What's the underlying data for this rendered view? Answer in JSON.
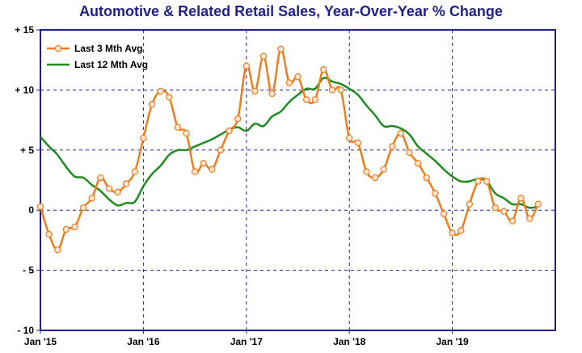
{
  "chart_data": {
    "type": "line",
    "title": "Automotive & Related Retail Sales, Year-Over-Year % Change",
    "xlabel": "",
    "ylabel": "",
    "ylim": [
      -10,
      15
    ],
    "y_ticks": [
      "+ 15",
      "+ 10",
      "+ 5",
      "0",
      "- 5",
      "- 10"
    ],
    "x_ticks": [
      "Jan '15",
      "Jan '16",
      "Jan '17",
      "Jan '18",
      "Jan '19"
    ],
    "x_start": "2015-01",
    "grid": true,
    "legend_position": "top-left",
    "series": [
      {
        "name": "Last 3 Mth Avg",
        "color": "#f07d1a",
        "marker": "circle",
        "x": [
          "2015-01",
          "2015-02",
          "2015-03",
          "2015-04",
          "2015-05",
          "2015-06",
          "2015-07",
          "2015-08",
          "2015-09",
          "2015-10",
          "2015-11",
          "2015-12",
          "2016-01",
          "2016-02",
          "2016-03",
          "2016-04",
          "2016-05",
          "2016-06",
          "2016-07",
          "2016-08",
          "2016-09",
          "2016-10",
          "2016-11",
          "2016-12",
          "2017-01",
          "2017-02",
          "2017-03",
          "2017-04",
          "2017-05",
          "2017-06",
          "2017-07",
          "2017-08",
          "2017-09",
          "2017-10",
          "2017-11",
          "2017-12",
          "2018-01",
          "2018-02",
          "2018-03",
          "2018-04",
          "2018-05",
          "2018-06",
          "2018-07",
          "2018-08",
          "2018-09",
          "2018-10",
          "2018-11",
          "2018-12",
          "2019-01",
          "2019-02",
          "2019-03",
          "2019-04",
          "2019-05",
          "2019-06",
          "2019-07",
          "2019-08",
          "2019-09",
          "2019-10",
          "2019-11"
        ],
        "values": [
          0.3,
          -2.0,
          -3.3,
          -1.6,
          -1.4,
          0.2,
          1.0,
          2.7,
          1.8,
          1.5,
          2.2,
          3.2,
          6.0,
          8.8,
          9.9,
          9.4,
          6.9,
          6.4,
          3.2,
          3.9,
          3.4,
          5.0,
          6.6,
          7.6,
          12.0,
          9.9,
          12.8,
          9.7,
          13.4,
          10.6,
          11.1,
          9.2,
          9.2,
          11.7,
          10.0,
          10.0,
          6.0,
          5.6,
          3.2,
          2.7,
          3.4,
          5.3,
          6.4,
          4.8,
          3.9,
          2.7,
          1.4,
          -0.3,
          -1.9,
          -1.7,
          0.5,
          2.4,
          2.4,
          0.2,
          -0.1,
          -0.9,
          1.0,
          -0.7,
          0.5
        ]
      },
      {
        "name": "Last 12 Mth Avg",
        "color": "#1e8c1e",
        "marker": "none",
        "x": [
          "2015-01",
          "2015-02",
          "2015-03",
          "2015-04",
          "2015-05",
          "2015-06",
          "2015-07",
          "2015-08",
          "2015-09",
          "2015-10",
          "2015-11",
          "2015-12",
          "2016-01",
          "2016-02",
          "2016-03",
          "2016-04",
          "2016-05",
          "2016-06",
          "2016-07",
          "2016-08",
          "2016-09",
          "2016-10",
          "2016-11",
          "2016-12",
          "2017-01",
          "2017-02",
          "2017-03",
          "2017-04",
          "2017-05",
          "2017-06",
          "2017-07",
          "2017-08",
          "2017-09",
          "2017-10",
          "2017-11",
          "2017-12",
          "2018-01",
          "2018-02",
          "2018-03",
          "2018-04",
          "2018-05",
          "2018-06",
          "2018-07",
          "2018-08",
          "2018-09",
          "2018-10",
          "2018-11",
          "2018-12",
          "2019-01",
          "2019-02",
          "2019-03",
          "2019-04",
          "2019-05",
          "2019-06",
          "2019-07",
          "2019-08",
          "2019-09",
          "2019-10",
          "2019-11"
        ],
        "values": [
          6.1,
          5.3,
          4.6,
          3.6,
          2.8,
          2.7,
          2.1,
          1.6,
          0.9,
          0.4,
          0.6,
          0.7,
          2.0,
          3.0,
          3.7,
          4.6,
          5.0,
          5.0,
          5.3,
          5.6,
          5.9,
          6.3,
          6.7,
          6.9,
          6.6,
          7.2,
          7.0,
          7.8,
          8.2,
          9.0,
          9.6,
          10.1,
          10.1,
          11.0,
          10.7,
          10.5,
          10.1,
          9.6,
          8.7,
          7.9,
          7.0,
          7.0,
          6.8,
          6.3,
          5.3,
          4.7,
          4.1,
          3.4,
          2.8,
          2.4,
          2.4,
          2.6,
          2.4,
          1.4,
          1.0,
          0.5,
          0.5,
          0.2,
          0.3
        ]
      }
    ]
  }
}
